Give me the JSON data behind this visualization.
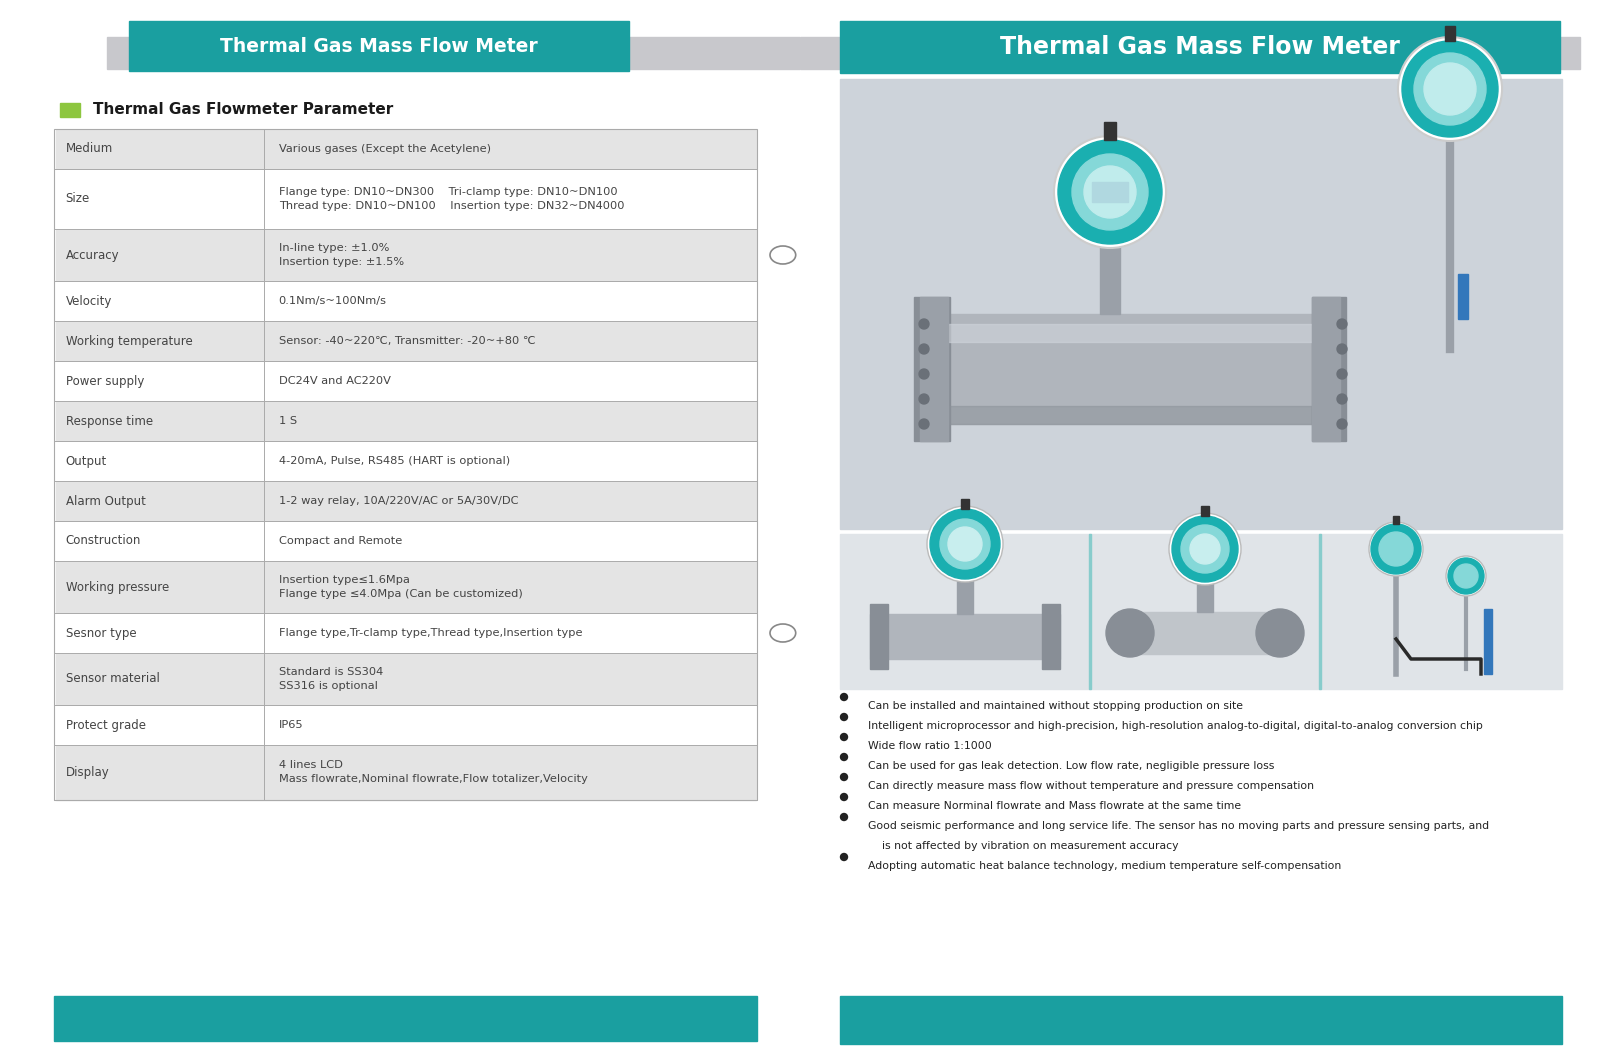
{
  "bg_color": "#ffffff",
  "teal_color": "#1a9fa0",
  "teal_color2": "#1aafb0",
  "light_gray_row": "#e4e4e4",
  "white_row": "#ffffff",
  "dark_gray_bar": "#c8c8cc",
  "text_dark": "#444444",
  "text_black": "#1a1a1a",
  "header_text_color": "#ffffff",
  "green_sq": "#8dc63f",
  "title_left": "Thermal Gas Mass Flow Meter",
  "title_right": "Thermal Gas Mass Flow Meter",
  "section_title": "Thermal Gas Flowmeter Parameter",
  "table_rows": [
    {
      "param": "Medium",
      "value": "Various gases (Except the Acetylene)",
      "shaded": true,
      "multiline": false
    },
    {
      "param": "Size",
      "value": "Flange type: DN10~DN300    Tri-clamp type: DN10~DN100\nThread type: DN10~DN100    Insertion type: DN32~DN4000",
      "shaded": false,
      "multiline": true
    },
    {
      "param": "Accuracy",
      "value": "In-line type: ±1.0%\nInsertion type: ±1.5%",
      "shaded": true,
      "multiline": true
    },
    {
      "param": "Velocity",
      "value": "0.1Nm/s~100Nm/s",
      "shaded": false,
      "multiline": false
    },
    {
      "param": "Working temperature",
      "value": "Sensor: -40~220℃, Transmitter: -20~+80 ℃",
      "shaded": true,
      "multiline": false
    },
    {
      "param": "Power supply",
      "value": "DC24V and AC220V",
      "shaded": false,
      "multiline": false
    },
    {
      "param": "Response time",
      "value": "1 S",
      "shaded": true,
      "multiline": false
    },
    {
      "param": "Output",
      "value": "4-20mA, Pulse, RS485 (HART is optional)",
      "shaded": false,
      "multiline": false
    },
    {
      "param": "Alarm Output",
      "value": "1-2 way relay, 10A/220V/AC or 5A/30V/DC",
      "shaded": true,
      "multiline": false
    },
    {
      "param": "Construction",
      "value": "Compact and Remote",
      "shaded": false,
      "multiline": false
    },
    {
      "param": "Working pressure",
      "value": "Insertion type≤1.6Mpa\nFlange type ≤4.0Mpa (Can be customized)",
      "shaded": true,
      "multiline": true
    },
    {
      "param": "Sesnor type",
      "value": "Flange type,Tr-clamp type,Thread type,Insertion type",
      "shaded": false,
      "multiline": false
    },
    {
      "param": "Sensor material",
      "value": "Standard is SS304\nSS316 is optional",
      "shaded": true,
      "multiline": true
    },
    {
      "param": "Protect grade",
      "value": "IP65",
      "shaded": false,
      "multiline": false
    },
    {
      "param": "Display",
      "value": "4 lines LCD\nMass flowrate,Nominal flowrate,Flow totalizer,Velocity",
      "shaded": true,
      "multiline": true
    }
  ],
  "circle_rows": [
    2,
    11
  ],
  "bullet_points": [
    "Can be installed and maintained without stopping production on site",
    "Intelligent microprocessor and high-precision, high-resolution analog-to-digital, digital-to-analog conversion chip",
    "Wide flow ratio 1:1000",
    "Can be used for gas leak detection. Low flow rate, negligible pressure loss",
    "Can directly measure mass flow without temperature and pressure compensation",
    "Can measure Norminal flowrate and Mass flowrate at the same time",
    "Good seismic performance and long service life. The sensor has no moving parts and pressure sensing parts, and",
    "  is not affected by vibration on measurement accuracy",
    "Adopting automatic heat balance technology, medium temperature self-compensation"
  ],
  "img_bg": "#d8dde3",
  "small_img_bg": "#e0e4e8"
}
